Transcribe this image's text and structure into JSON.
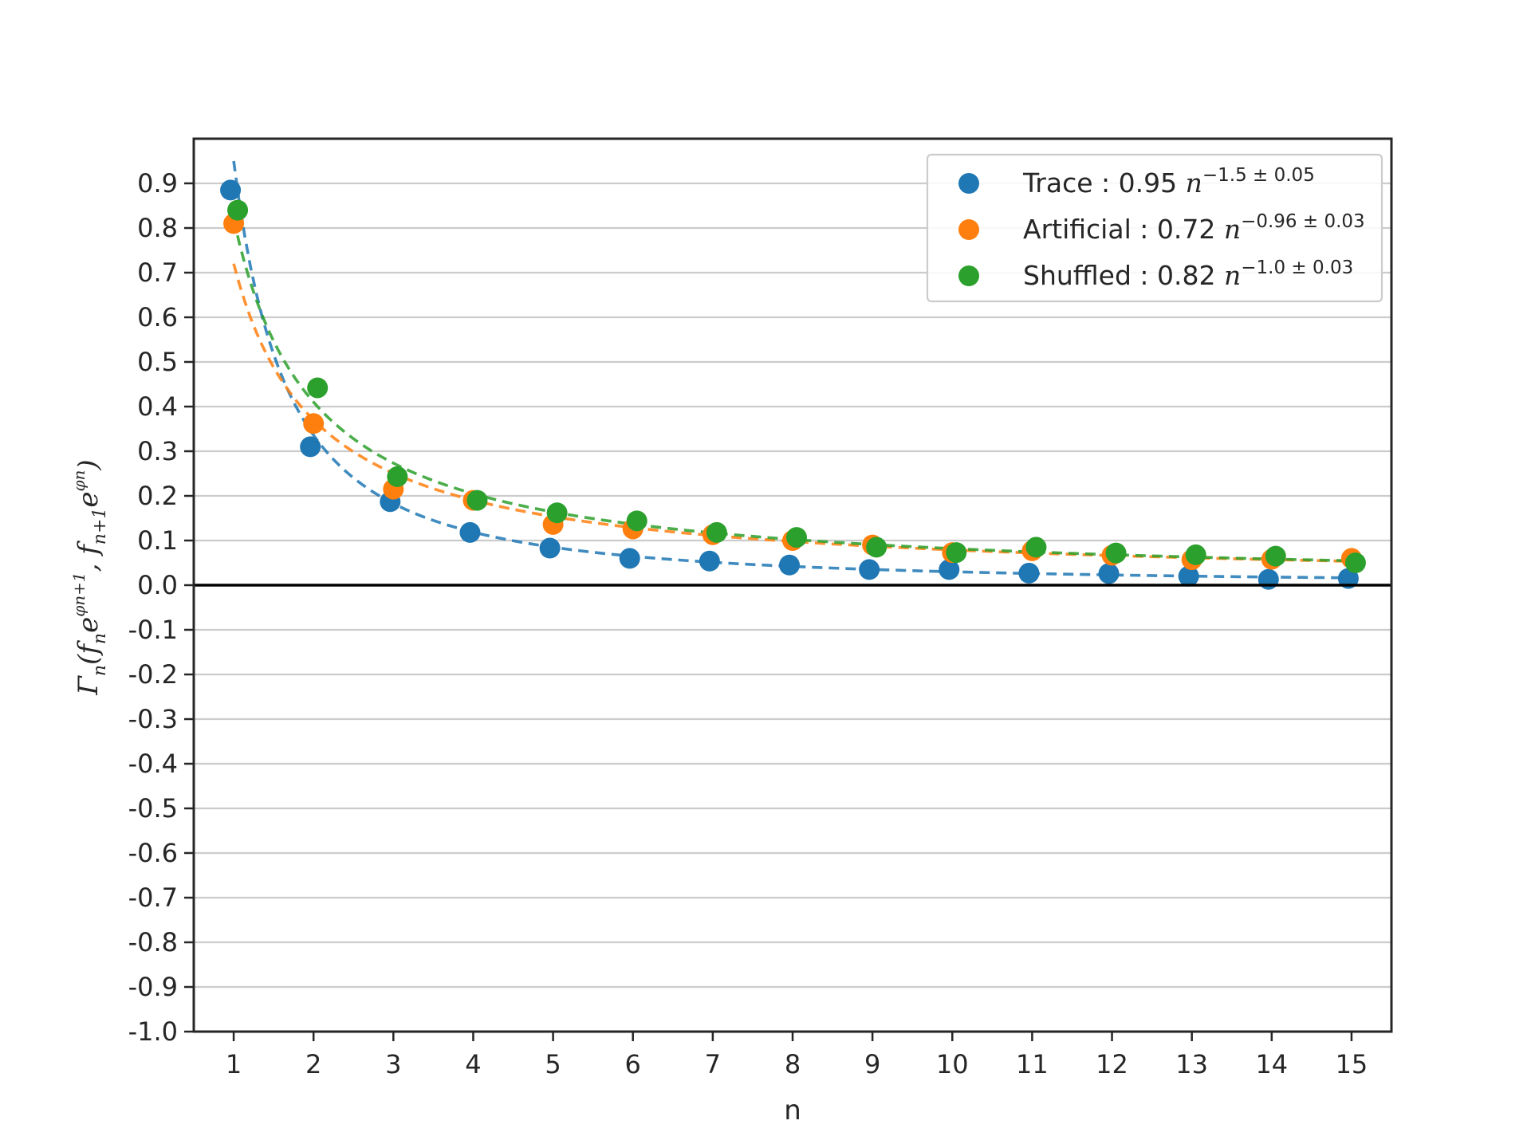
{
  "chart_data": {
    "type": "scatter",
    "xlabel": "n",
    "ylabel": "Γₙ(fₙe^{φₙ₊₁}, fₙ₊₁e^{φₙ})",
    "xlim": [
      0.5,
      15.5
    ],
    "ylim": [
      -1.0,
      1.0
    ],
    "x_ticks": [
      1,
      2,
      3,
      4,
      5,
      6,
      7,
      8,
      9,
      10,
      11,
      12,
      13,
      14,
      15
    ],
    "y_ticks": [
      -1.0,
      -0.9,
      -0.8,
      -0.7,
      -0.6,
      -0.5,
      -0.4,
      -0.3,
      -0.2,
      -0.1,
      0.0,
      0.1,
      0.2,
      0.3,
      0.4,
      0.5,
      0.6,
      0.7,
      0.8,
      0.9
    ],
    "y_tick_labels": [
      "-1.0",
      "-0.9",
      "-0.8",
      "-0.7",
      "-0.6",
      "-0.5",
      "-0.4",
      "-0.3",
      "-0.2",
      "-0.1",
      "0.0",
      "0.1",
      "0.2",
      "0.3",
      "0.4",
      "0.5",
      "0.6",
      "0.7",
      "0.8",
      "0.9"
    ],
    "grid": "horizontal",
    "zero_line": true,
    "legend_position": "top-right",
    "series": [
      {
        "name": "Trace",
        "legend_prefix": "Trace",
        "legend_coef": "0.95",
        "legend_exp": "−1.5 ± 0.05",
        "color": "#1f77b4",
        "fit": {
          "a": 0.95,
          "b": 1.5
        },
        "x": [
          1,
          2,
          3,
          4,
          5,
          6,
          7,
          8,
          9,
          10,
          11,
          12,
          13,
          14,
          15
        ],
        "y": [
          0.885,
          0.31,
          0.187,
          0.118,
          0.083,
          0.06,
          0.054,
          0.045,
          0.035,
          0.035,
          0.027,
          0.026,
          0.02,
          0.013,
          0.015
        ]
      },
      {
        "name": "Artificial",
        "legend_prefix": "Artificial",
        "legend_coef": "0.72",
        "legend_exp": "−0.96 ± 0.03",
        "color": "#ff7f0e",
        "fit": {
          "a": 0.72,
          "b": 0.96
        },
        "x": [
          1,
          2,
          3,
          4,
          5,
          6,
          7,
          8,
          9,
          10,
          11,
          12,
          13,
          14,
          15
        ],
        "y": [
          0.81,
          0.362,
          0.215,
          0.19,
          0.136,
          0.126,
          0.113,
          0.1,
          0.09,
          0.073,
          0.077,
          0.067,
          0.057,
          0.058,
          0.06
        ]
      },
      {
        "name": "Shuffled",
        "legend_prefix": "Shuffled",
        "legend_coef": "0.82",
        "legend_exp": "−1.0 ± 0.03",
        "color": "#2ca02c",
        "fit": {
          "a": 0.82,
          "b": 1.0
        },
        "x": [
          1,
          2,
          3,
          4,
          5,
          6,
          7,
          8,
          9,
          10,
          11,
          12,
          13,
          14,
          15
        ],
        "y": [
          0.84,
          0.442,
          0.243,
          0.19,
          0.162,
          0.144,
          0.118,
          0.107,
          0.085,
          0.073,
          0.085,
          0.072,
          0.068,
          0.065,
          0.05
        ]
      }
    ]
  }
}
